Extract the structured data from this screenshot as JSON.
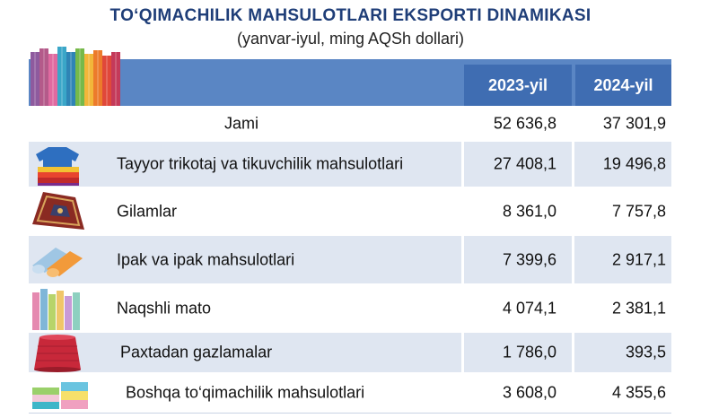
{
  "title": "TO‘QIMACHILIK MAHSULOTLARI EKSPORTI DINAMIKASI",
  "subtitle": "(yanvar-iyul, ming AQSh dollari)",
  "colors": {
    "title": "#1f3e78",
    "header_band": "#5a86c4",
    "header_cell": "#3f6db2",
    "row_shade": "#dfe6f1"
  },
  "icons": [
    "fabric-rolls-icon",
    "folded-sweaters-icon",
    "carpet-icon",
    "silk-rolls-icon",
    "fabric-bolts-icon",
    "yarn-cone-icon",
    "folded-towels-icon"
  ],
  "chart_data": {
    "type": "table",
    "columns": [
      "2023-yil",
      "2024-yil"
    ],
    "rows": [
      {
        "label": "Jami",
        "values": [
          "52 636,8",
          "37 301,9"
        ],
        "v": [
          52636.8,
          37301.9
        ]
      },
      {
        "label": "Tayyor trikotaj va tikuvchilik mahsulotlari",
        "values": [
          "27 408,1",
          "19 496,8"
        ],
        "v": [
          27408.1,
          19496.8
        ]
      },
      {
        "label": "Gilamlar",
        "values": [
          "8 361,0",
          "7 757,8"
        ],
        "v": [
          8361.0,
          7757.8
        ]
      },
      {
        "label": "Ipak va ipak mahsulotlari",
        "values": [
          "7 399,6",
          "2 917,1"
        ],
        "v": [
          7399.6,
          2917.1
        ]
      },
      {
        "label": "Naqshli mato",
        "values": [
          "4 074,1",
          "2 381,1"
        ],
        "v": [
          4074.1,
          2381.1
        ]
      },
      {
        "label": "Paxtadan gazlamalar",
        "values": [
          "1 786,0",
          "393,5"
        ],
        "v": [
          1786.0,
          393.5
        ]
      },
      {
        "label": "Boshqa to‘qimachilik mahsulotlari",
        "values": [
          "3 608,0",
          "4 355,6"
        ],
        "v": [
          3608.0,
          4355.6
        ]
      }
    ]
  }
}
